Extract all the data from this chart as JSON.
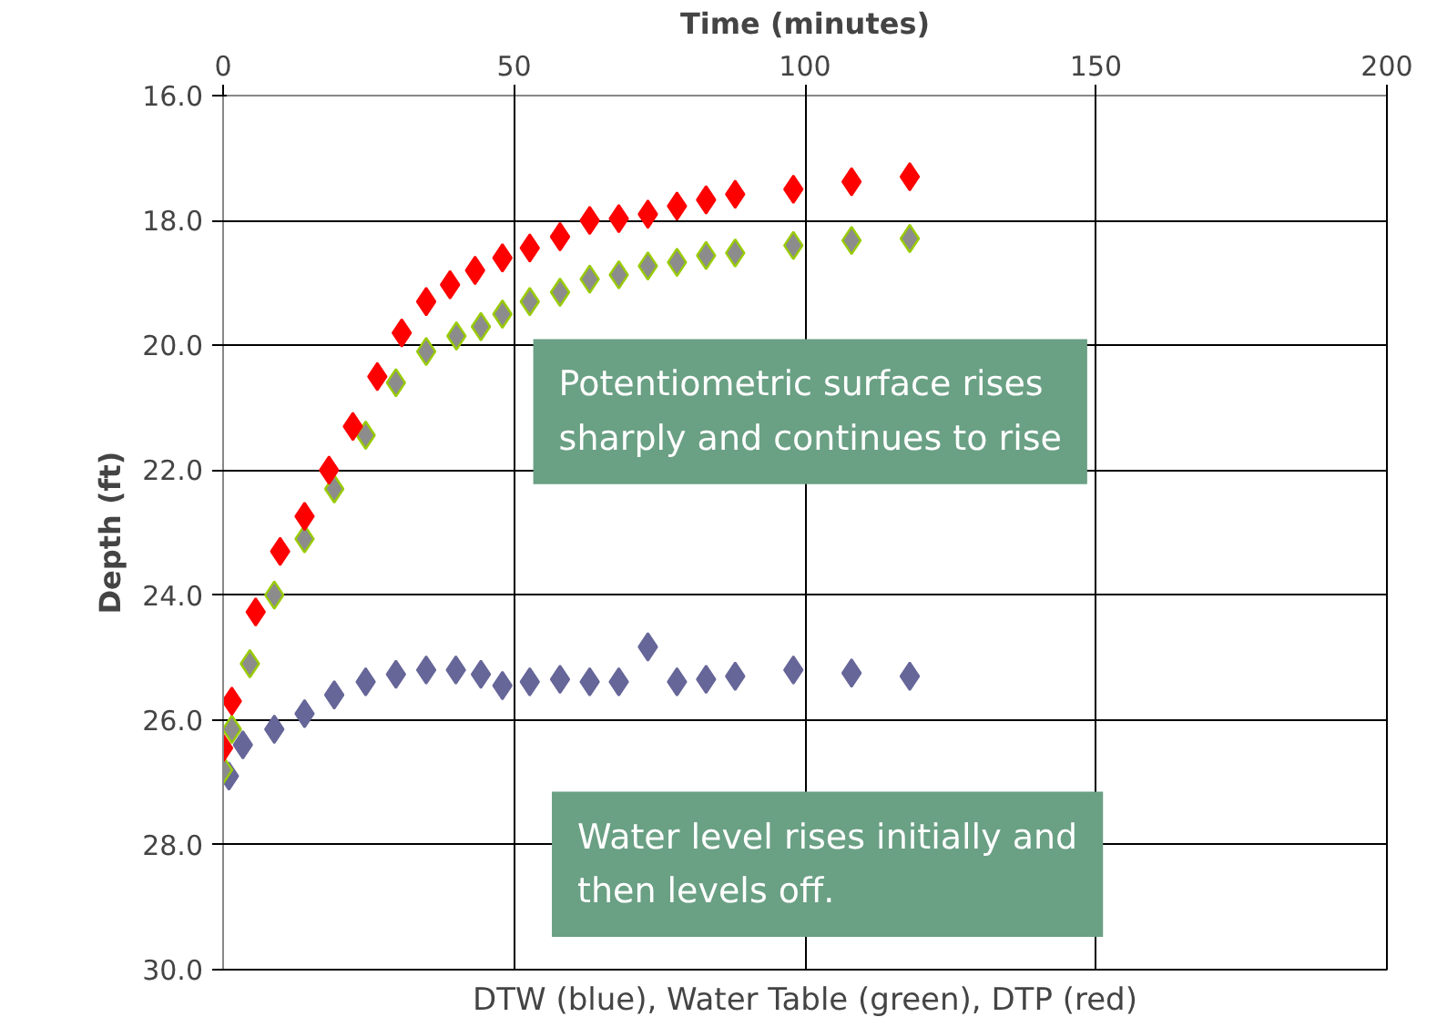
{
  "chart_data": {
    "type": "scatter",
    "xlabel": "Time (minutes)",
    "ylabel": "Depth (ft)",
    "xlim": [
      0,
      200
    ],
    "xticks": [
      0,
      50,
      100,
      150,
      200
    ],
    "ylim": [
      30,
      16
    ],
    "yticks": [
      {
        "value": 16,
        "label": "16.0"
      },
      {
        "value": 18,
        "label": "18.0"
      },
      {
        "value": 20,
        "label": "20.0"
      },
      {
        "value": 22,
        "label": "22.0"
      },
      {
        "value": 24,
        "label": "24.0"
      },
      {
        "value": 26,
        "label": "26.0"
      },
      {
        "value": 28,
        "label": "28.0"
      },
      {
        "value": 30,
        "label": "30.0"
      }
    ],
    "grid": true,
    "marker": "diamond",
    "series": [
      {
        "color": "#666699",
        "x": [
          1,
          3.4,
          8.8,
          14,
          19.1,
          24.5,
          29.7,
          34.9,
          40,
          44.3,
          48,
          52.7,
          57.9,
          63,
          68,
          73,
          78,
          83,
          88,
          98,
          108,
          118
        ],
        "values": [
          26.9,
          26.4,
          26.15,
          25.9,
          25.6,
          25.39,
          25.27,
          25.2,
          25.2,
          25.27,
          25.45,
          25.39,
          25.35,
          25.39,
          25.39,
          24.83,
          25.39,
          25.35,
          25.3,
          25.2,
          25.25,
          25.3
        ]
      },
      {
        "color": "#8c8c8c",
        "x": [
          0,
          1.5,
          4.6,
          8.8,
          14,
          19.1,
          24.5,
          29.7,
          34.9,
          40.1,
          44.3,
          48,
          52.7,
          57.9,
          63,
          68,
          73,
          78,
          83,
          88,
          98,
          108,
          118
        ],
        "values": [
          26.8,
          26.15,
          25.1,
          24.0,
          23.1,
          22.3,
          21.44,
          20.6,
          20.1,
          19.85,
          19.7,
          19.5,
          19.3,
          19.15,
          18.94,
          18.87,
          18.73,
          18.67,
          18.56,
          18.52,
          18.4,
          18.32,
          18.29
        ]
      },
      {
        "color": "#ff0000",
        "x": [
          0,
          1.5,
          5.6,
          9.8,
          14,
          18.2,
          22.3,
          26.5,
          30.7,
          34.9,
          39,
          43.3,
          48,
          52.7,
          57.9,
          63,
          68,
          73,
          78,
          83,
          88,
          98,
          108,
          118
        ],
        "values": [
          26.45,
          25.7,
          24.27,
          23.3,
          22.74,
          22.0,
          21.3,
          20.5,
          19.8,
          19.3,
          19.03,
          18.8,
          18.6,
          18.44,
          18.26,
          18.0,
          17.97,
          17.9,
          17.77,
          17.67,
          17.58,
          17.5,
          17.38,
          17.3
        ]
      }
    ],
    "annotations": [
      "Potentiometric surface rises\nsharply and continues to rise",
      "Water level rises initially and\nthen levels off.",
      "DTW (blue), Water Table (green), DTP (red)"
    ]
  }
}
